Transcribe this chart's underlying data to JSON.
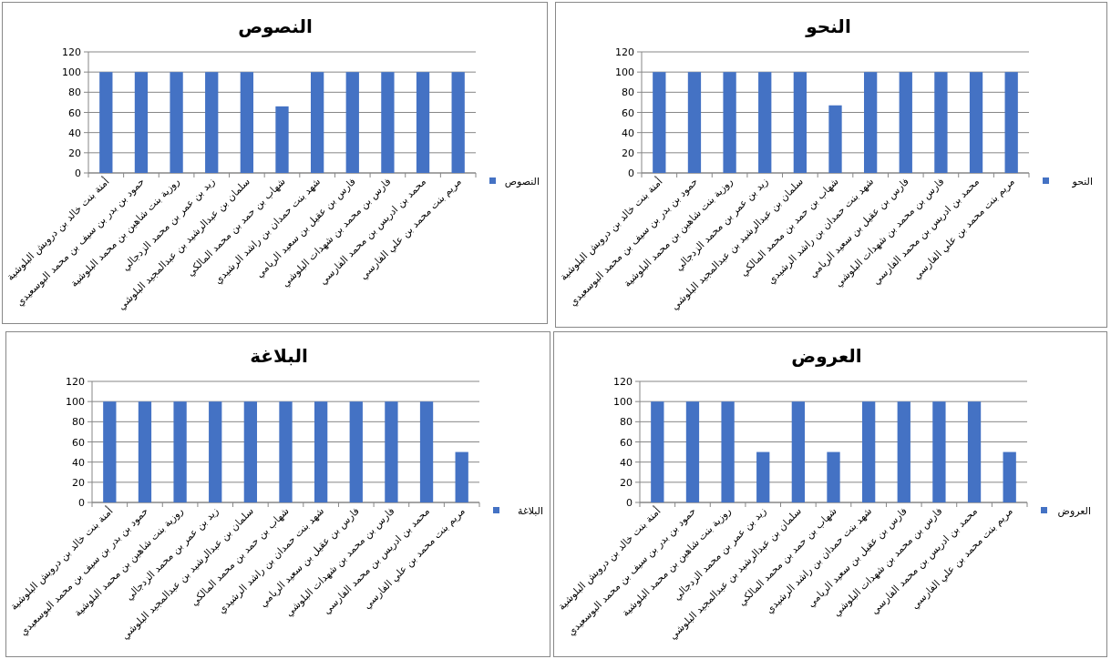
{
  "chart_data": [
    {
      "type": "bar",
      "title": "النصوص",
      "categories": [
        "أمنة بنت خالد بن درويش  البلوشية",
        "حمود بن بدر بن  سيف بن محمد البوسعيدي",
        "روزية بنت شاهين بن محمد البلوشية",
        "زيد بن عمر بن محمد الزدجالي",
        "سلمان بن عبدالرشيد بن عبدالمجيد البلوشي",
        "شهاب بن حمد بن محمد المالكي",
        "شهد بنت حمدان بن راشد الرشيدي",
        "فارس بن عقيل بن سعيد الريامي",
        "فارس بن محمد بن شهدات البلوشي",
        "محمد بن ادريس بن محمد الفارسي",
        "مريم بنت محمد بن علي الفارسي"
      ],
      "series": [
        {
          "name": "النصوص",
          "color": "#4472c4",
          "values": [
            100,
            100,
            100,
            100,
            100,
            66,
            100,
            100,
            100,
            100,
            100
          ]
        }
      ],
      "ylim": [
        0,
        120
      ],
      "yticks": [
        0,
        20,
        40,
        60,
        80,
        100,
        120
      ],
      "grid": "y",
      "legend": "right"
    },
    {
      "type": "bar",
      "title": "النحو",
      "categories": [
        "أمنة بنت خالد بن درويش  البلوشية",
        "حمود بن بدر بن  سيف بن محمد البوسعيدي",
        "روزية بنت شاهين بن محمد البلوشية",
        "زيد بن عمر بن محمد الزدجالي",
        "سلمان بن عبدالرشيد بن عبدالمجيد البلوشي",
        "شهاب بن حمد بن محمد المالكي",
        "شهد بنت حمدان بن راشد الرشيدي",
        "فارس بن عقيل بن سعيد الريامي",
        "فارس بن محمد بن شهدات البلوشي",
        "محمد بن ادريس بن محمد الفارسي",
        "مريم بنت محمد بن علي الفارسي"
      ],
      "series": [
        {
          "name": "النحو",
          "color": "#4472c4",
          "values": [
            100,
            100,
            100,
            100,
            100,
            67,
            100,
            100,
            100,
            100,
            100
          ]
        }
      ],
      "ylim": [
        0,
        120
      ],
      "yticks": [
        0,
        20,
        40,
        60,
        80,
        100,
        120
      ],
      "grid": "y",
      "legend": "right"
    },
    {
      "type": "bar",
      "title": "البلاغة",
      "categories": [
        "أمنة بنت خالد بن درويش  البلوشية",
        "حمود بن بدر بن  سيف بن محمد البوسعيدي",
        "روزية بنت شاهين بن محمد البلوشية",
        "زيد بن عمر بن محمد الزدجالي",
        "سلمان بن عبدالرشيد بن عبدالمجيد البلوشي",
        "شهاب بن حمد بن محمد المالكي",
        "شهد بنت حمدان بن راشد الرشيدي",
        "فارس بن عقيل بن سعيد الريامي",
        "فارس بن محمد بن شهدات البلوشي",
        "محمد بن ادريس بن محمد الفارسي",
        "مريم بنت محمد بن علي الفارسي"
      ],
      "series": [
        {
          "name": "البلاغة",
          "color": "#4472c4",
          "values": [
            100,
            100,
            100,
            100,
            100,
            100,
            100,
            100,
            100,
            100,
            50
          ]
        }
      ],
      "ylim": [
        0,
        120
      ],
      "yticks": [
        0,
        20,
        40,
        60,
        80,
        100,
        120
      ],
      "grid": "y",
      "legend": "right"
    },
    {
      "type": "bar",
      "title": "العروض",
      "categories": [
        "أمنة بنت خالد بن درويش  البلوشية",
        "حمود بن بدر بن  سيف بن محمد البوسعيدي",
        "روزية بنت شاهين بن محمد البلوشية",
        "زيد بن عمر بن محمد الزدجالي",
        "سلمان بن عبدالرشيد بن عبدالمجيد البلوشي",
        "شهاب بن حمد بن محمد المالكي",
        "شهد بنت حمدان بن راشد الرشيدي",
        "فارس بن عقيل بن سعيد الريامي",
        "فارس بن محمد بن شهدات البلوشي",
        "محمد بن ادريس بن محمد الفارسي",
        "مريم بنت محمد بن علي الفارسي"
      ],
      "series": [
        {
          "name": "العروض",
          "color": "#4472c4",
          "values": [
            100,
            100,
            100,
            50,
            100,
            50,
            100,
            100,
            100,
            100,
            50
          ]
        }
      ],
      "ylim": [
        0,
        120
      ],
      "yticks": [
        0,
        20,
        40,
        60,
        80,
        100,
        120
      ],
      "grid": "y",
      "legend": "right"
    }
  ]
}
